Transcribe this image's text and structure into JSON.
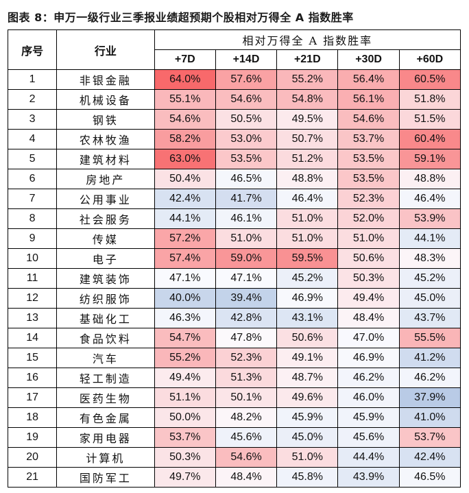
{
  "title": "图表 8：申万一级行业三季报业绩超预期个股相对万得全 A 指数胜率",
  "table": {
    "headers": {
      "index": "序号",
      "industry": "行业",
      "group": "相对万得全 A 指数胜率",
      "periods": [
        "+7D",
        "+14D",
        "+21D",
        "+30D",
        "+60D"
      ]
    },
    "rows": [
      {
        "index": "1",
        "industry": "非银金融",
        "values": [
          "64.0%",
          "57.6%",
          "55.2%",
          "56.4%",
          "60.5%"
        ]
      },
      {
        "index": "2",
        "industry": "机械设备",
        "values": [
          "55.1%",
          "54.6%",
          "54.8%",
          "56.1%",
          "51.8%"
        ]
      },
      {
        "index": "3",
        "industry": "钢铁",
        "values": [
          "54.6%",
          "50.5%",
          "49.5%",
          "54.6%",
          "51.5%"
        ]
      },
      {
        "index": "4",
        "industry": "农林牧渔",
        "values": [
          "58.2%",
          "53.0%",
          "50.7%",
          "53.7%",
          "60.4%"
        ]
      },
      {
        "index": "5",
        "industry": "建筑材料",
        "values": [
          "63.0%",
          "53.5%",
          "51.2%",
          "53.5%",
          "59.1%"
        ]
      },
      {
        "index": "6",
        "industry": "房地产",
        "values": [
          "50.4%",
          "46.5%",
          "48.8%",
          "53.5%",
          "48.8%"
        ]
      },
      {
        "index": "7",
        "industry": "公用事业",
        "values": [
          "42.4%",
          "41.7%",
          "46.4%",
          "52.3%",
          "46.4%"
        ]
      },
      {
        "index": "8",
        "industry": "社会服务",
        "values": [
          "44.1%",
          "46.1%",
          "51.0%",
          "52.0%",
          "53.9%"
        ]
      },
      {
        "index": "9",
        "industry": "传媒",
        "values": [
          "57.2%",
          "51.0%",
          "51.0%",
          "51.0%",
          "44.1%"
        ]
      },
      {
        "index": "10",
        "industry": "电子",
        "values": [
          "57.4%",
          "59.0%",
          "59.5%",
          "50.6%",
          "48.3%"
        ]
      },
      {
        "index": "11",
        "industry": "建筑装饰",
        "values": [
          "47.1%",
          "47.1%",
          "45.2%",
          "50.3%",
          "45.2%"
        ]
      },
      {
        "index": "12",
        "industry": "纺织服饰",
        "values": [
          "40.0%",
          "39.4%",
          "46.9%",
          "49.4%",
          "45.0%"
        ]
      },
      {
        "index": "13",
        "industry": "基础化工",
        "values": [
          "46.3%",
          "42.8%",
          "43.1%",
          "48.4%",
          "43.7%"
        ]
      },
      {
        "index": "14",
        "industry": "食品饮料",
        "values": [
          "54.7%",
          "47.8%",
          "50.6%",
          "47.0%",
          "55.5%"
        ]
      },
      {
        "index": "15",
        "industry": "汽车",
        "values": [
          "55.2%",
          "52.3%",
          "49.1%",
          "46.9%",
          "41.2%"
        ]
      },
      {
        "index": "16",
        "industry": "轻工制造",
        "values": [
          "49.4%",
          "51.3%",
          "48.7%",
          "46.2%",
          "46.2%"
        ]
      },
      {
        "index": "17",
        "industry": "医药生物",
        "values": [
          "51.1%",
          "50.1%",
          "49.6%",
          "46.0%",
          "37.9%"
        ]
      },
      {
        "index": "18",
        "industry": "有色金属",
        "values": [
          "50.0%",
          "48.2%",
          "45.9%",
          "45.9%",
          "41.0%"
        ]
      },
      {
        "index": "19",
        "industry": "家用电器",
        "values": [
          "53.7%",
          "45.6%",
          "45.0%",
          "45.6%",
          "53.7%"
        ]
      },
      {
        "index": "20",
        "industry": "计算机",
        "values": [
          "50.3%",
          "54.6%",
          "51.0%",
          "44.4%",
          "42.4%"
        ]
      },
      {
        "index": "21",
        "industry": "国防军工",
        "values": [
          "49.7%",
          "48.4%",
          "45.8%",
          "43.9%",
          "46.5%"
        ]
      }
    ]
  },
  "colors": {
    "scale_high": "#F8696B",
    "scale_mid": "#FCFCFF",
    "scale_low": "#B9CBE6",
    "scale_min_value": 37.9,
    "scale_mid_value": 47.5,
    "scale_max_value": 64.0,
    "border": "#000000"
  }
}
